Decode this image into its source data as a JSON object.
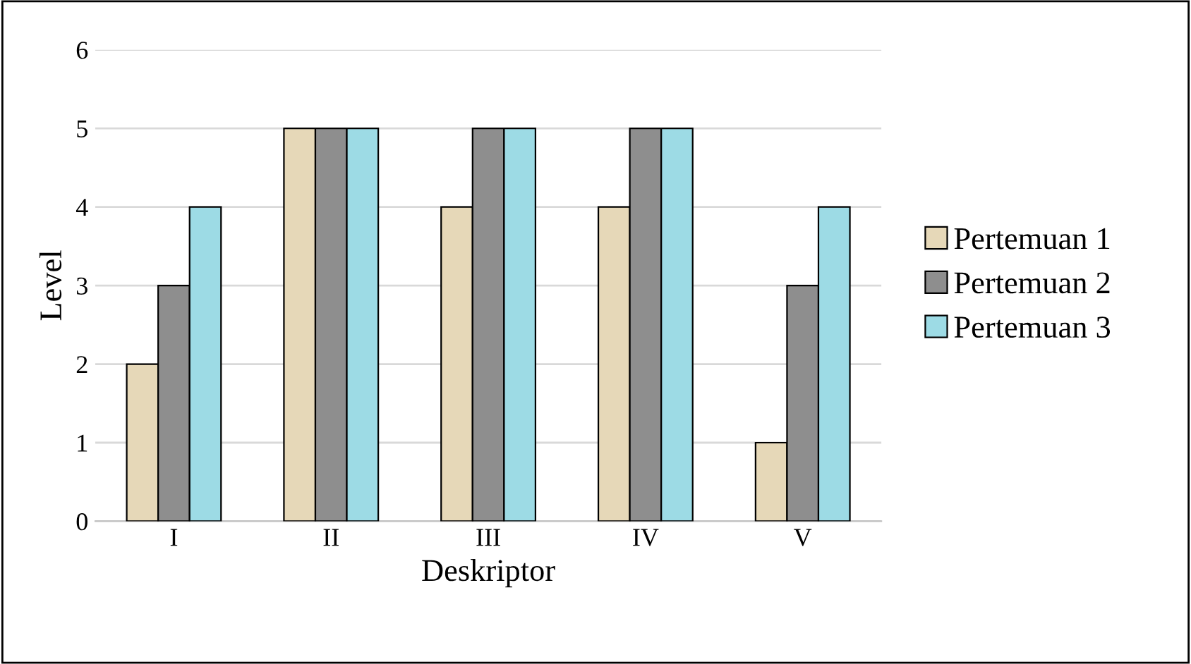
{
  "chart_data": {
    "type": "bar",
    "xlabel": "Deskriptor",
    "ylabel": "Level",
    "categories": [
      "I",
      "II",
      "III",
      "IV",
      "V"
    ],
    "series": [
      {
        "name": "Pertemuan 1",
        "color": "#e6d8b8",
        "values": [
          2,
          5,
          4,
          4,
          1
        ]
      },
      {
        "name": "Pertemuan 2",
        "color": "#8e8e8e",
        "values": [
          3,
          5,
          5,
          5,
          3
        ]
      },
      {
        "name": "Pertemuan 3",
        "color": "#9ddbe5",
        "values": [
          4,
          5,
          5,
          5,
          4
        ]
      }
    ],
    "ylim": [
      0,
      6
    ],
    "yticks": [
      0,
      1,
      2,
      3,
      4,
      5,
      6
    ],
    "grid": "y",
    "legend": "right"
  }
}
